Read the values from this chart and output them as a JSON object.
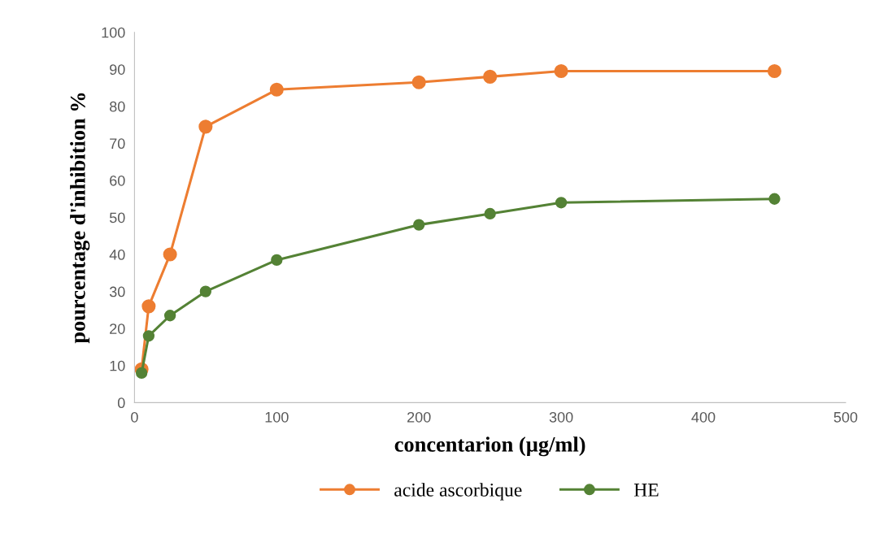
{
  "chart_data": {
    "type": "line",
    "xlabel": "concentarion (µg/ml)",
    "ylabel": "pourcentage d'inhibition %",
    "xlim": [
      0,
      500
    ],
    "xticks": [
      0,
      100,
      200,
      300,
      400,
      500
    ],
    "ylim": [
      0,
      100
    ],
    "yticks": [
      0,
      10,
      20,
      30,
      40,
      50,
      60,
      70,
      80,
      90,
      100
    ],
    "x": [
      5,
      10,
      25,
      50,
      100,
      200,
      250,
      300,
      450
    ],
    "series": [
      {
        "name": "acide ascorbique",
        "color": "#ed7d31",
        "values": [
          9,
          26,
          40,
          74.5,
          84.5,
          86.5,
          88,
          89.5,
          89.5
        ]
      },
      {
        "name": "HE",
        "color": "#548235",
        "values": [
          8,
          18,
          23.5,
          30,
          38.5,
          48,
          51,
          54,
          55
        ]
      }
    ],
    "marker": "circle",
    "line_style": "solid",
    "grid": false,
    "legend": "bottom"
  }
}
